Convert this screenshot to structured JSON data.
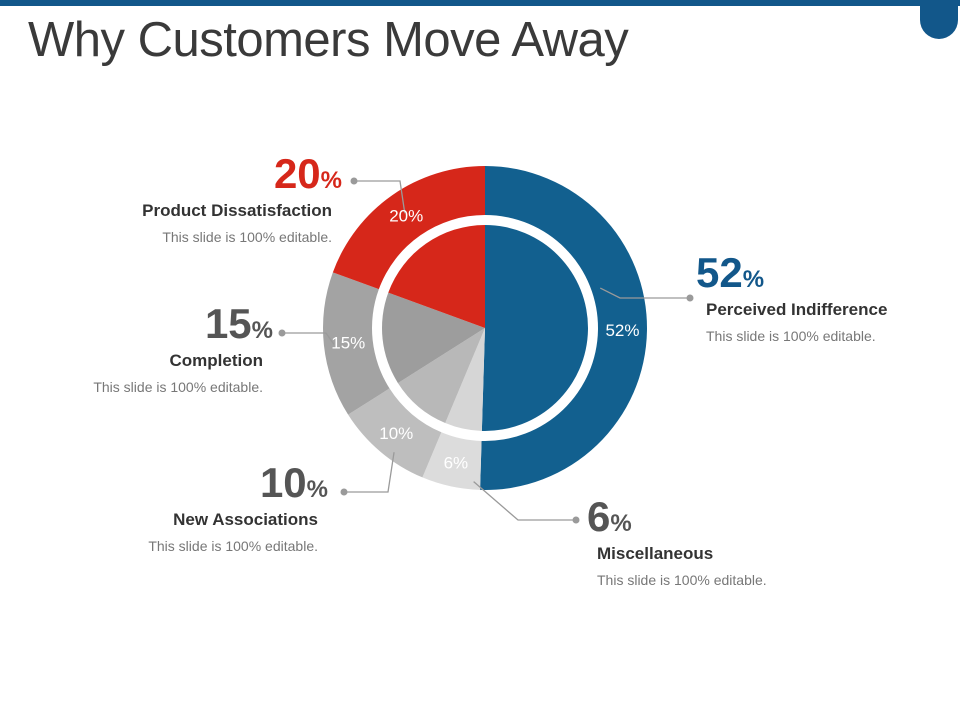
{
  "slide": {
    "title": "Why Customers Move Away",
    "accent": "#12578a"
  },
  "chart_data": {
    "type": "pie",
    "style": "donut-with-inner-pie",
    "unit": "%",
    "categories": [
      "Perceived Indifference",
      "Miscellaneous",
      "New Associations",
      "Completion",
      "Product Dissatisfaction"
    ],
    "values": [
      52,
      6,
      10,
      15,
      20
    ],
    "slice_labels": [
      "52%",
      "6%",
      "10%",
      "15%",
      "20%"
    ],
    "colors": [
      "#12608f",
      "#dcdcdc",
      "#bebebe",
      "#a3a3a3",
      "#d6271a"
    ],
    "inner_colors": [
      "#12608f",
      "#d6d6d6",
      "#b8b8b8",
      "#9d9d9d",
      "#d6271a"
    ],
    "legend": "callouts"
  },
  "callouts": [
    {
      "value": "52",
      "symbol": "%",
      "name": "Perceived Indifference",
      "desc": "This slide is 100% editable.",
      "color": "#12578a"
    },
    {
      "value": "6",
      "symbol": "%",
      "name": "Miscellaneous",
      "desc": "This slide is 100% editable.",
      "color": "#555555"
    },
    {
      "value": "10",
      "symbol": "%",
      "name": "New Associations",
      "desc": "This slide is 100% editable.",
      "color": "#555555"
    },
    {
      "value": "15",
      "symbol": "%",
      "name": "Completion",
      "desc": "This slide is 100% editable.",
      "color": "#555555"
    },
    {
      "value": "20",
      "symbol": "%",
      "name": "Product Dissatisfaction",
      "desc": "This slide is 100% editable.",
      "color": "#d6271a"
    }
  ]
}
